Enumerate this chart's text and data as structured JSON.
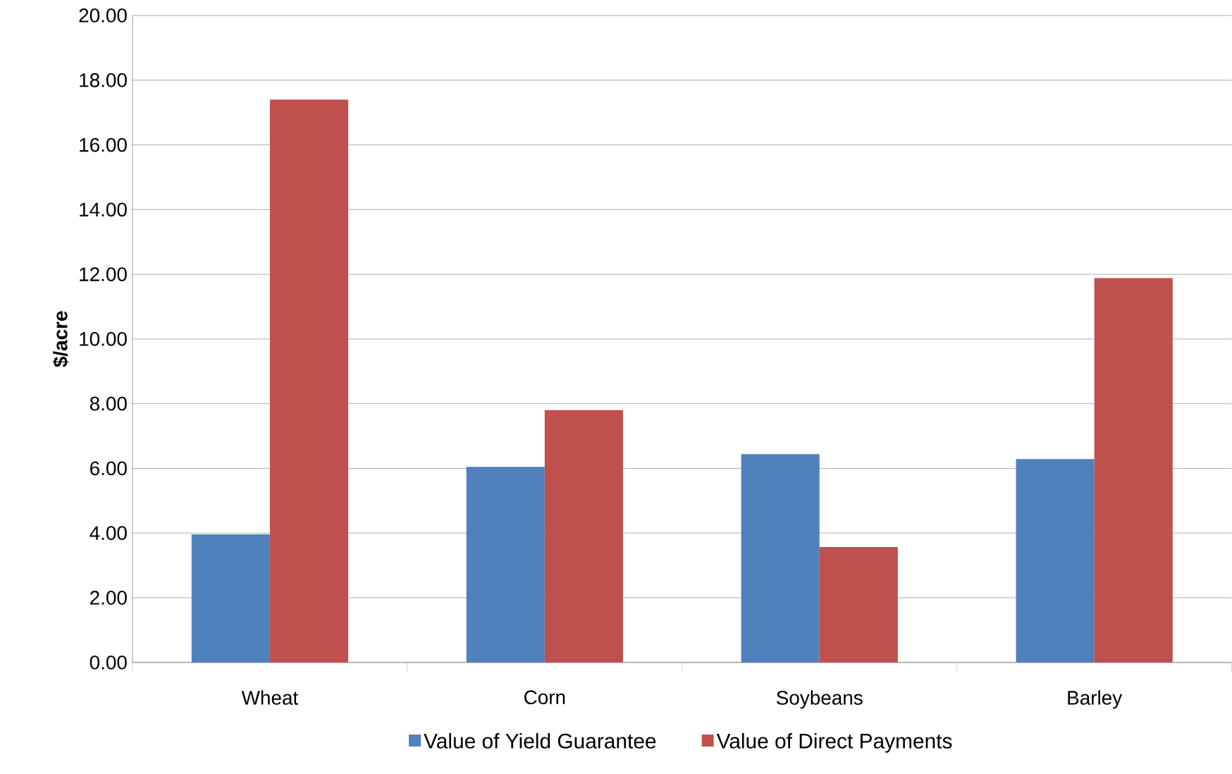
{
  "chart_data": {
    "type": "bar",
    "ylabel": "$/acre",
    "categories": [
      "Wheat",
      "Corn",
      "Soybeans",
      "Barley"
    ],
    "series": [
      {
        "name": "Value of Yield Guarantee",
        "color": "#4f81bd",
        "values": [
          3.96,
          6.05,
          6.44,
          6.29
        ]
      },
      {
        "name": "Value of Direct Payments",
        "color": "#c0504d",
        "values": [
          17.4,
          7.8,
          3.57,
          11.88
        ]
      }
    ],
    "ylim": [
      0,
      20
    ],
    "yticks": [
      {
        "value": 0,
        "label": "0.00"
      },
      {
        "value": 2,
        "label": "2.00"
      },
      {
        "value": 4,
        "label": "4.00"
      },
      {
        "value": 6,
        "label": "6.00"
      },
      {
        "value": 8,
        "label": "8.00"
      },
      {
        "value": 10,
        "label": "10.00"
      },
      {
        "value": 12,
        "label": "12.00"
      },
      {
        "value": 14,
        "label": "14.00"
      },
      {
        "value": 16,
        "label": "16.00"
      },
      {
        "value": 18,
        "label": "18.00"
      },
      {
        "value": 20,
        "label": "20.00"
      }
    ],
    "grid": "y",
    "legend": "bottom"
  }
}
